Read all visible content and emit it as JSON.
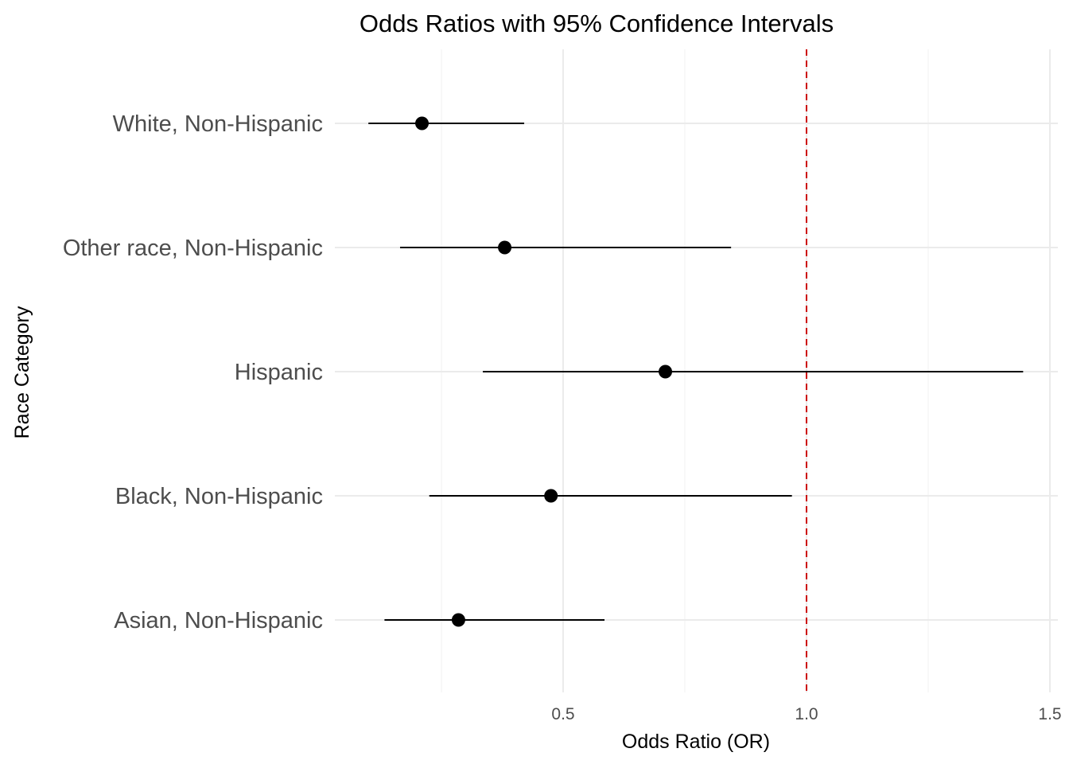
{
  "chart_data": {
    "type": "scatter",
    "subtype": "forest-plot",
    "title": "Odds Ratios with 95% Confidence Intervals",
    "xlabel": "Odds Ratio (OR)",
    "ylabel": "Race Category",
    "xlim": [
      0.03,
      1.51
    ],
    "x_ticks": [
      {
        "value": 0.5,
        "label": "0.5"
      },
      {
        "value": 1.0,
        "label": "1.0"
      },
      {
        "value": 1.5,
        "label": "1.5"
      }
    ],
    "x_minor_ticks": [
      0.25,
      0.75,
      1.25
    ],
    "categories": [
      "White, Non-Hispanic",
      "Other race, Non-Hispanic",
      "Hispanic",
      "Black, Non-Hispanic",
      "Asian, Non-Hispanic"
    ],
    "points": [
      {
        "category": "White, Non-Hispanic",
        "or": 0.21,
        "lower": 0.1,
        "upper": 0.42
      },
      {
        "category": "Other race, Non-Hispanic",
        "or": 0.38,
        "lower": 0.165,
        "upper": 0.845
      },
      {
        "category": "Hispanic",
        "or": 0.71,
        "lower": 0.335,
        "upper": 1.445
      },
      {
        "category": "Black, Non-Hispanic",
        "or": 0.475,
        "lower": 0.225,
        "upper": 0.97
      },
      {
        "category": "Asian, Non-Hispanic",
        "or": 0.285,
        "lower": 0.133,
        "upper": 0.585
      }
    ],
    "reference_line": {
      "value": 1.0,
      "color": "#cc0000"
    },
    "point_color": "#000000",
    "grid": true,
    "legend": "none"
  }
}
